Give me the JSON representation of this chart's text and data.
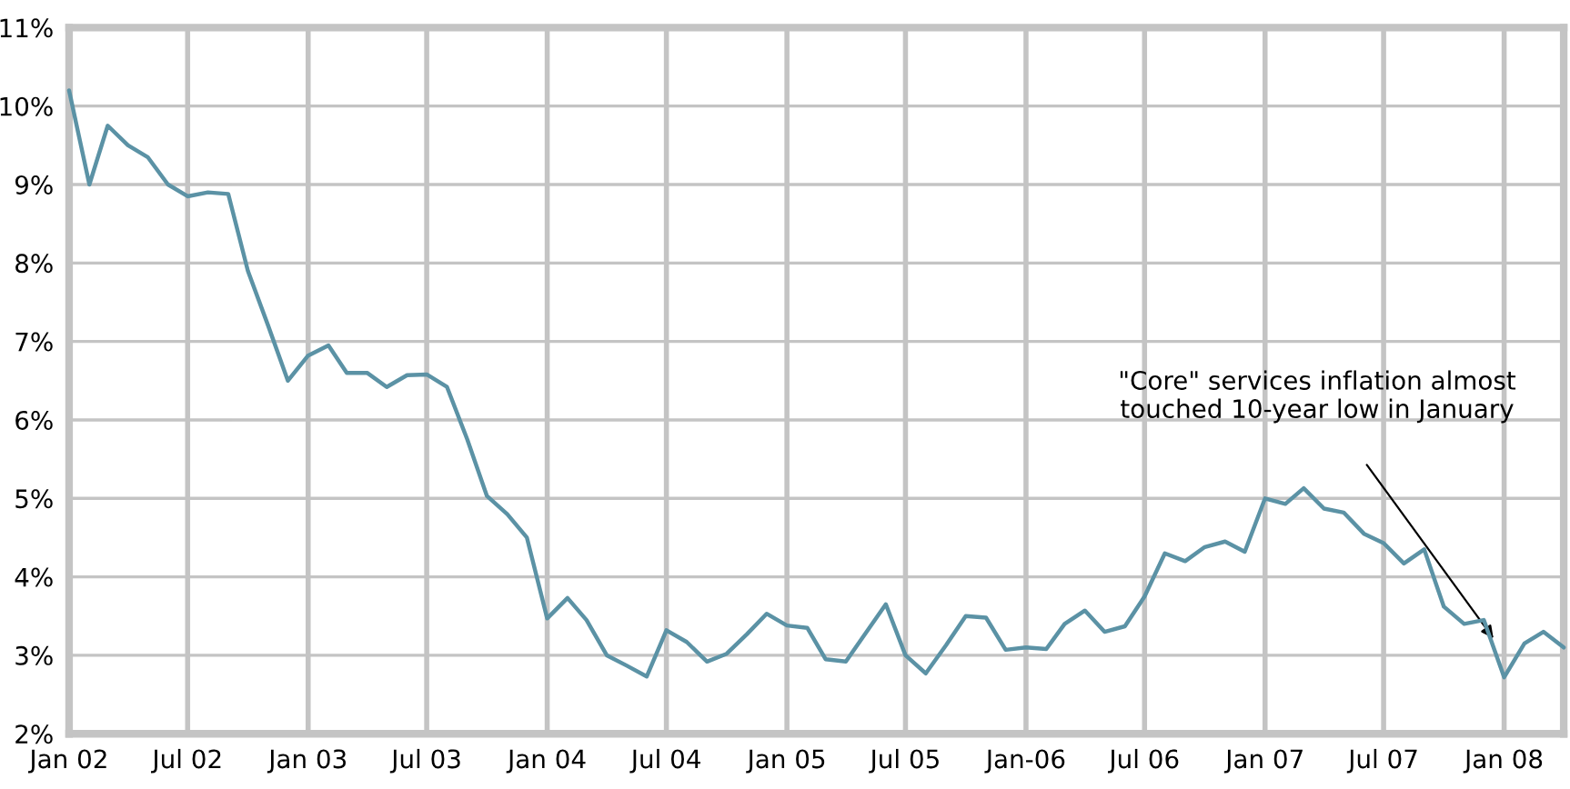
{
  "chart_data": {
    "type": "line",
    "x": [
      "2002-01",
      "2002-02",
      "2002-03",
      "2002-04",
      "2002-05",
      "2002-06",
      "2002-07",
      "2002-08",
      "2002-09",
      "2002-10",
      "2002-11",
      "2002-12",
      "2003-01",
      "2003-02",
      "2003-03",
      "2003-04",
      "2003-05",
      "2003-06",
      "2003-07",
      "2003-08",
      "2003-09",
      "2003-10",
      "2003-11",
      "2003-12",
      "2004-01",
      "2004-02",
      "2004-03",
      "2004-04",
      "2004-05",
      "2004-06",
      "2004-07",
      "2004-08",
      "2004-09",
      "2004-10",
      "2004-11",
      "2004-12",
      "2005-01",
      "2005-02",
      "2005-03",
      "2005-04",
      "2005-05",
      "2005-06",
      "2005-07",
      "2005-08",
      "2005-09",
      "2005-10",
      "2005-11",
      "2005-12",
      "2006-01",
      "2006-02",
      "2006-03",
      "2006-04",
      "2006-05",
      "2006-06",
      "2006-07",
      "2006-08",
      "2006-09",
      "2006-10",
      "2006-11",
      "2006-12",
      "2007-01",
      "2007-02",
      "2007-03",
      "2007-04",
      "2007-05",
      "2007-06",
      "2007-07",
      "2007-08",
      "2007-09",
      "2007-10",
      "2007-11",
      "2007-12",
      "2008-01",
      "2008-02",
      "2008-03",
      "2008-04"
    ],
    "series": [
      {
        "color": "#5b92a5",
        "values": [
          10.2,
          9.0,
          9.75,
          9.5,
          9.35,
          9.0,
          8.85,
          8.9,
          8.88,
          7.9,
          7.2,
          6.5,
          6.82,
          6.95,
          6.6,
          6.6,
          6.42,
          6.57,
          6.58,
          6.42,
          5.75,
          5.03,
          4.8,
          4.5,
          3.47,
          3.73,
          3.45,
          3.0,
          2.87,
          2.73,
          3.32,
          3.17,
          2.92,
          3.02,
          3.27,
          3.53,
          3.38,
          3.35,
          2.95,
          2.92,
          3.28,
          3.65,
          3.0,
          2.77,
          3.13,
          3.5,
          3.48,
          3.07,
          3.1,
          3.08,
          3.4,
          3.57,
          3.3,
          3.37,
          3.75,
          4.3,
          4.2,
          4.38,
          4.45,
          4.32,
          5.0,
          4.93,
          5.13,
          4.87,
          4.82,
          4.55,
          4.43,
          4.17,
          4.35,
          3.62,
          3.4,
          3.45,
          2.72,
          3.15,
          3.3,
          3.1
        ]
      }
    ],
    "xlim": [
      "2002-01",
      "2008-04"
    ],
    "xticks": [
      {
        "value": "2002-01",
        "label": "Jan 02"
      },
      {
        "value": "2002-07",
        "label": "Jul 02"
      },
      {
        "value": "2003-01",
        "label": "Jan 03"
      },
      {
        "value": "2003-07",
        "label": "Jul 03"
      },
      {
        "value": "2004-01",
        "label": "Jan 04"
      },
      {
        "value": "2004-07",
        "label": "Jul 04"
      },
      {
        "value": "2005-01",
        "label": "Jan 05"
      },
      {
        "value": "2005-07",
        "label": "Jul 05"
      },
      {
        "value": "2006-01",
        "label": "Jan-06"
      },
      {
        "value": "2006-07",
        "label": "Jul 06"
      },
      {
        "value": "2007-01",
        "label": "Jan 07"
      },
      {
        "value": "2007-07",
        "label": "Jul 07"
      },
      {
        "value": "2008-01",
        "label": "Jan 08"
      }
    ],
    "ylim": [
      2,
      11
    ],
    "yticks": [
      {
        "value": 2,
        "label": "2%"
      },
      {
        "value": 3,
        "label": "3%"
      },
      {
        "value": 4,
        "label": "4%"
      },
      {
        "value": 5,
        "label": "5%"
      },
      {
        "value": 6,
        "label": "6%"
      },
      {
        "value": 7,
        "label": "7%"
      },
      {
        "value": 8,
        "label": "8%"
      },
      {
        "value": 9,
        "label": "9%"
      },
      {
        "value": 10,
        "label": "10%"
      },
      {
        "value": 11,
        "label": "11%"
      }
    ],
    "grid": true,
    "annotations": [
      "\"Core\" services inflation almost\ntouched 10-year low in January"
    ]
  }
}
